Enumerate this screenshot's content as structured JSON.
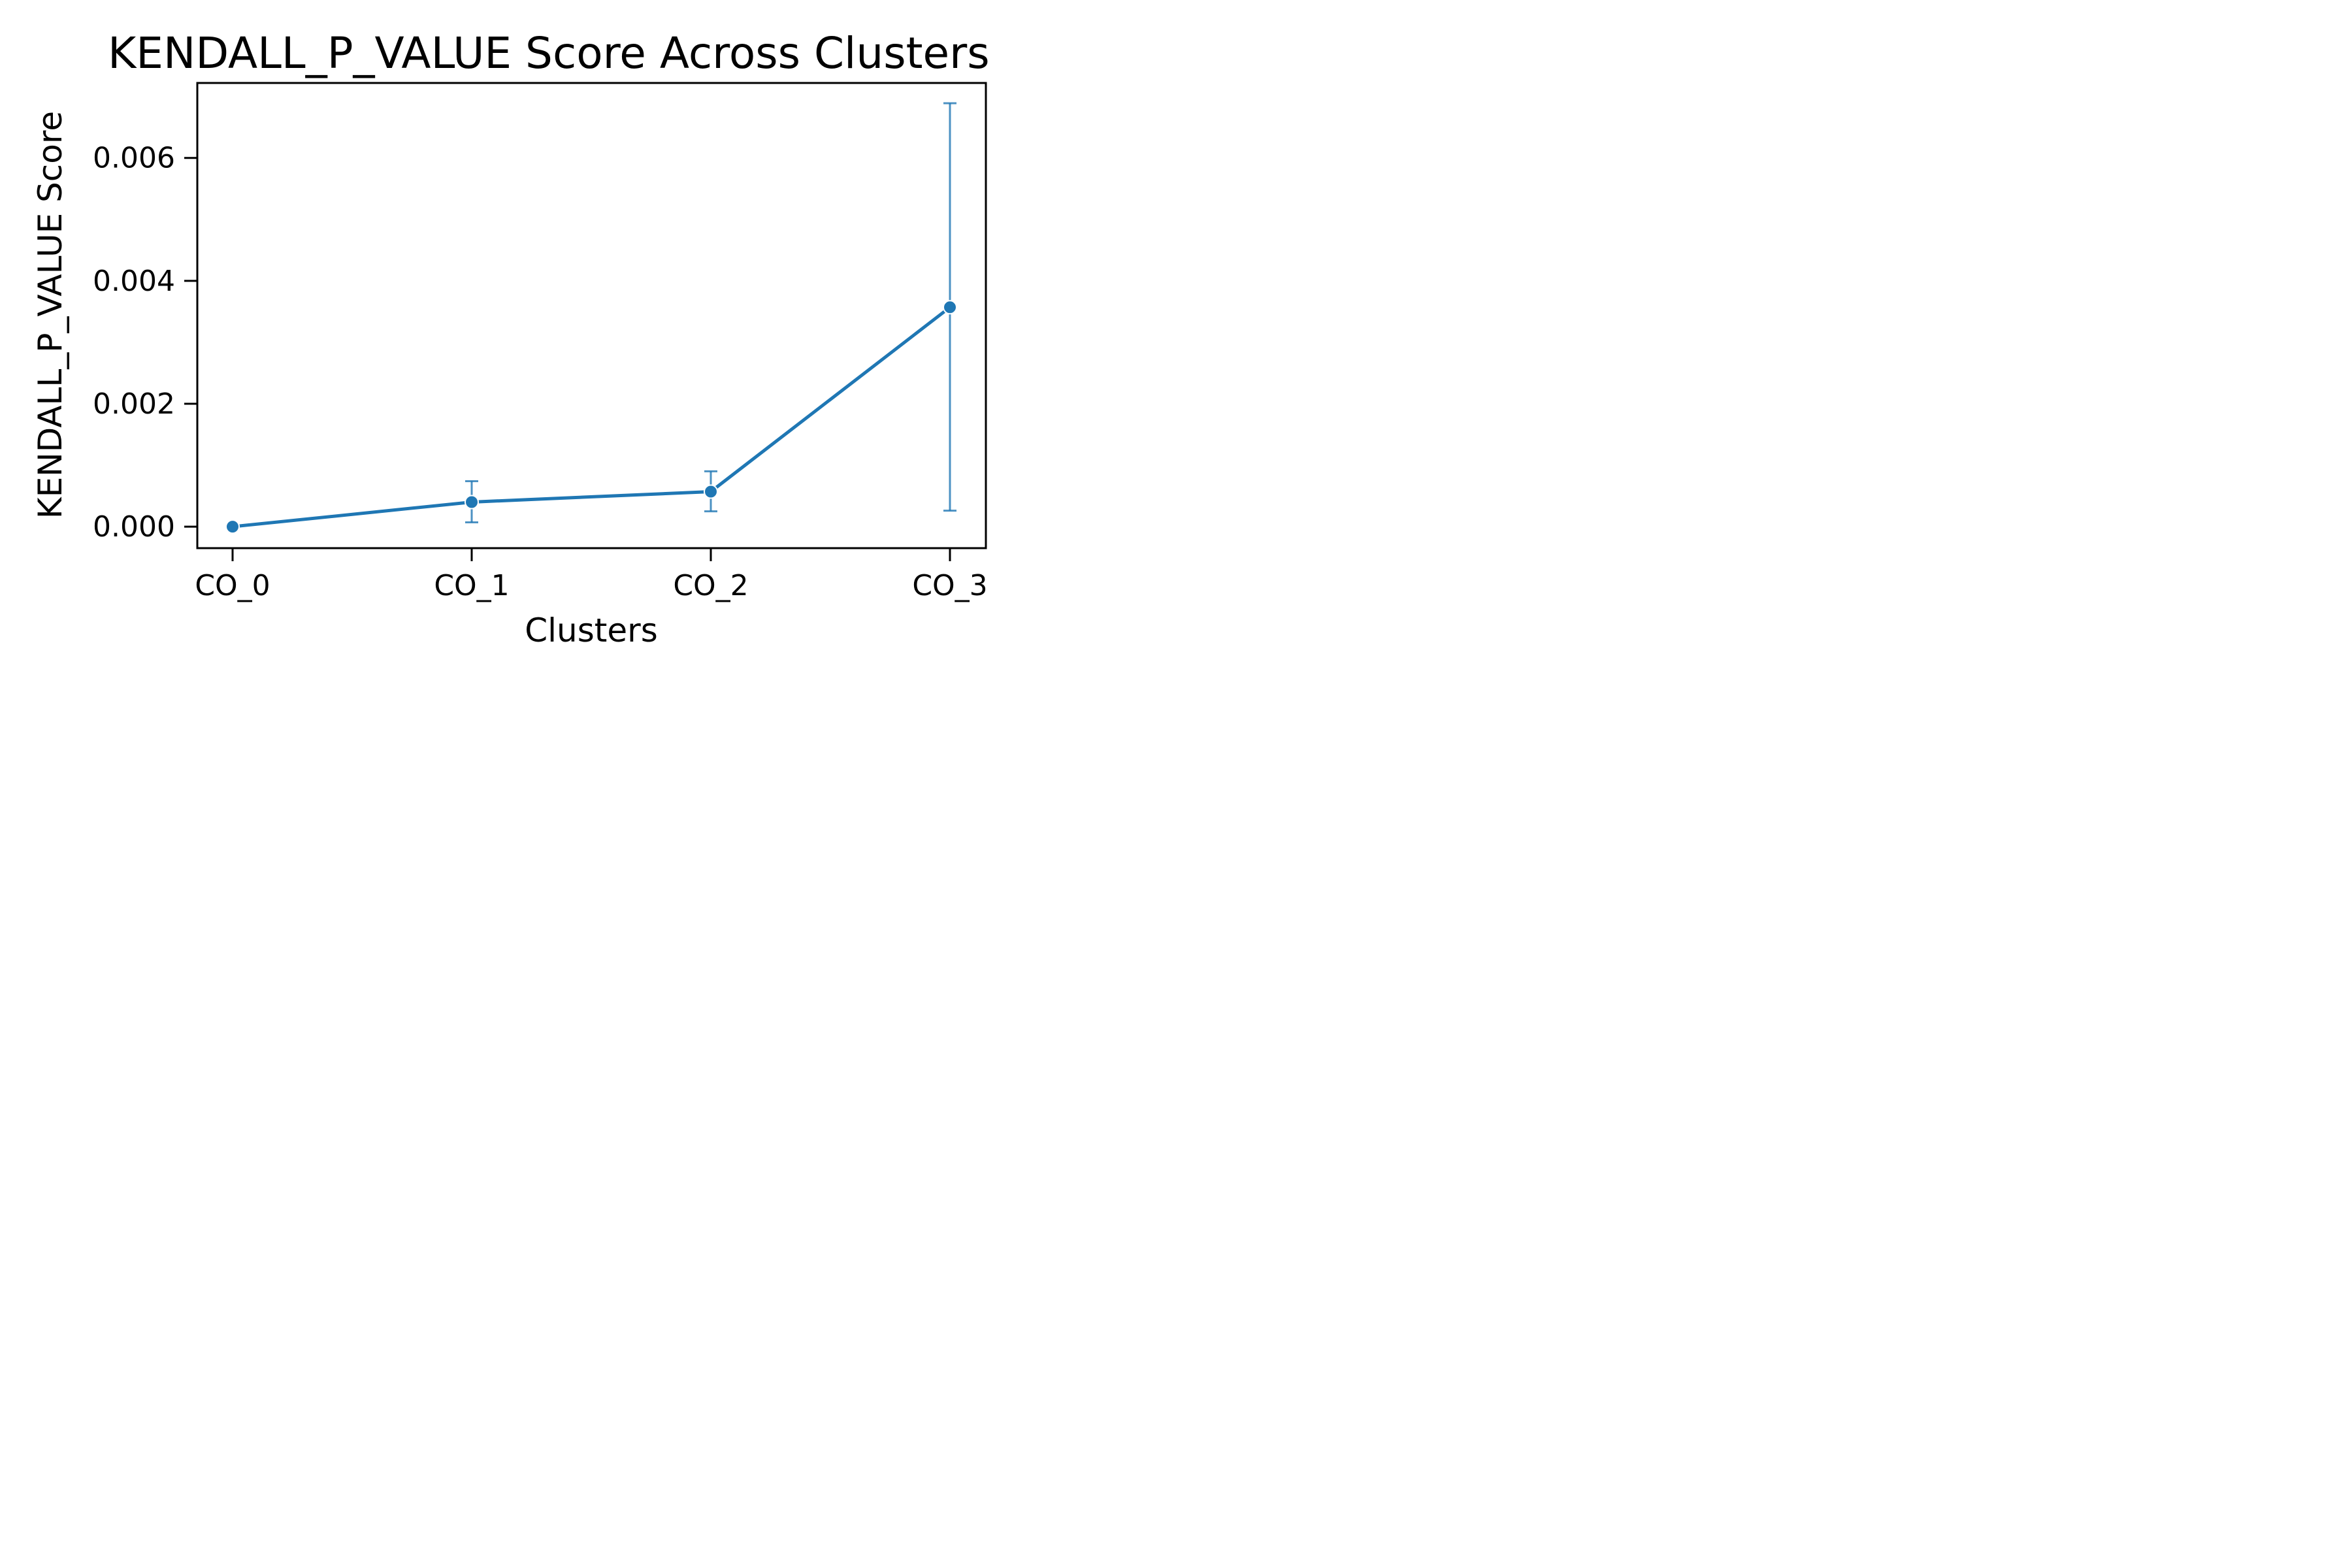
{
  "chart_data": {
    "type": "line",
    "title": "KENDALL_P_VALUE Score Across Clusters",
    "xlabel": "Clusters",
    "ylabel": "KENDALL_P_VALUE Score",
    "categories": [
      "CO_0",
      "CO_1",
      "CO_2",
      "CO_3"
    ],
    "series": [
      {
        "values": [
          0.0,
          0.0004,
          0.00057,
          0.00357
        ],
        "error_low": [
          0.0,
          7e-05,
          0.00025,
          0.00026
        ],
        "error_high": [
          0.0,
          0.00074,
          0.0009,
          0.00689
        ],
        "color": "#1f77b4"
      }
    ],
    "yticks": [
      0.0,
      0.002,
      0.004,
      0.006
    ],
    "ytick_labels": [
      "0.000",
      "0.002",
      "0.004",
      "0.006"
    ],
    "ylim": [
      -0.00035,
      0.00722
    ],
    "grid": false,
    "legend": false
  }
}
